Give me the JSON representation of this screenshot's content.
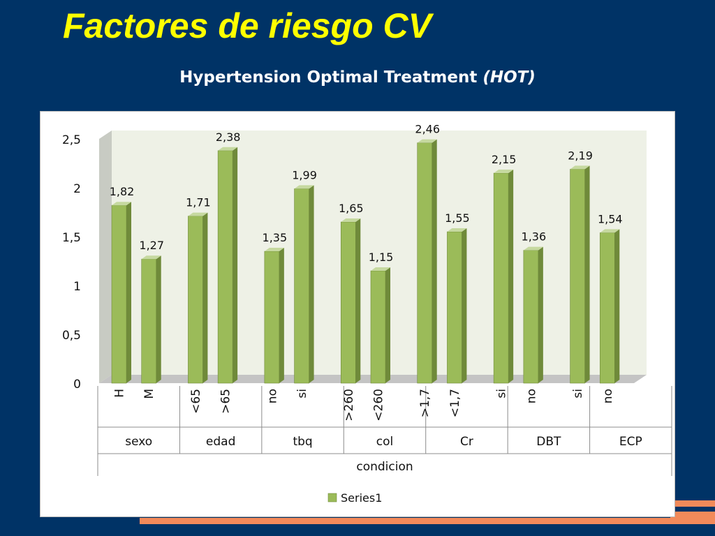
{
  "slide": {
    "title": "Factores de riesgo CV",
    "subtitle_main": "Hypertension Optimal Treatment ",
    "subtitle_em": "(HOT)"
  },
  "colors": {
    "background": "#003366",
    "title": "#ffff00",
    "bar": "#9bbb59",
    "accent_stripes": "#f28a5a"
  },
  "chart_data": {
    "type": "bar",
    "style": "3d-column",
    "title": "",
    "xlabel": "condicion",
    "ylabel": "",
    "ylim": [
      0,
      2.5
    ],
    "yticks": [
      0,
      0.5,
      1,
      1.5,
      2,
      2.5
    ],
    "ytick_labels": [
      "0",
      "0,5",
      "1",
      "1,5",
      "2",
      "2,5"
    ],
    "grid": false,
    "legend": {
      "position": "bottom",
      "entries": [
        "Series1"
      ]
    },
    "groups": [
      {
        "name": "sexo",
        "categories": [
          "H",
          "M"
        ]
      },
      {
        "name": "edad",
        "categories": [
          "<65",
          ">65"
        ]
      },
      {
        "name": "tbq",
        "categories": [
          "no",
          "si"
        ]
      },
      {
        "name": "col",
        "categories": [
          ">260",
          "<260"
        ]
      },
      {
        "name": "Cr",
        "categories": [
          ">1,7",
          "<1,7"
        ]
      },
      {
        "name": "DBT",
        "categories": [
          "si",
          "no"
        ]
      },
      {
        "name": "ECP",
        "categories": [
          "si",
          "no"
        ]
      }
    ],
    "series": [
      {
        "name": "Series1",
        "values": [
          1.82,
          1.27,
          1.71,
          2.38,
          1.35,
          1.99,
          1.65,
          1.15,
          2.46,
          1.55,
          2.15,
          1.36,
          2.19,
          1.54
        ],
        "labels": [
          "1,82",
          "1,27",
          "1,71",
          "2,38",
          "1,35",
          "1,99",
          "1,65",
          "1,15",
          "2,46",
          "1,55",
          "2,15",
          "1,36",
          "2,19",
          "1,54"
        ]
      }
    ]
  }
}
